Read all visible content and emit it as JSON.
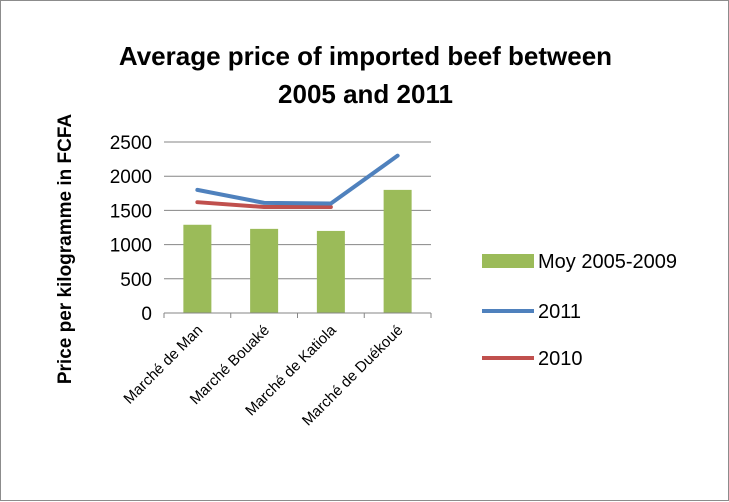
{
  "chart_data": {
    "type": "bar",
    "title_lines": [
      "Average price of imported beef between",
      "2005 and 2011"
    ],
    "xlabel": "",
    "ylabel": "Price per kilogramme in FCFA",
    "ylim": [
      0,
      2500
    ],
    "yticks": [
      "0",
      "500",
      "1000",
      "1500",
      "2000",
      "2500"
    ],
    "ytick_values": [
      0,
      500,
      1000,
      1500,
      2000,
      2500
    ],
    "grid": true,
    "legend_position": "right",
    "categories": [
      "Marché de Man",
      "Marché Bouaké",
      "Marché de Katiola",
      "Marché de Duékoué"
    ],
    "series": [
      {
        "name": "Moy 2005-2009",
        "type": "bar",
        "color": "#9bbb59",
        "values": [
          1290,
          1230,
          1200,
          1800
        ]
      },
      {
        "name": "2011",
        "type": "line",
        "color": "#4f81bd",
        "values": [
          1800,
          1610,
          1600,
          2300
        ]
      },
      {
        "name": "2010",
        "type": "line",
        "color": "#c0504d",
        "values": [
          1620,
          1550,
          1550,
          null
        ]
      }
    ]
  }
}
